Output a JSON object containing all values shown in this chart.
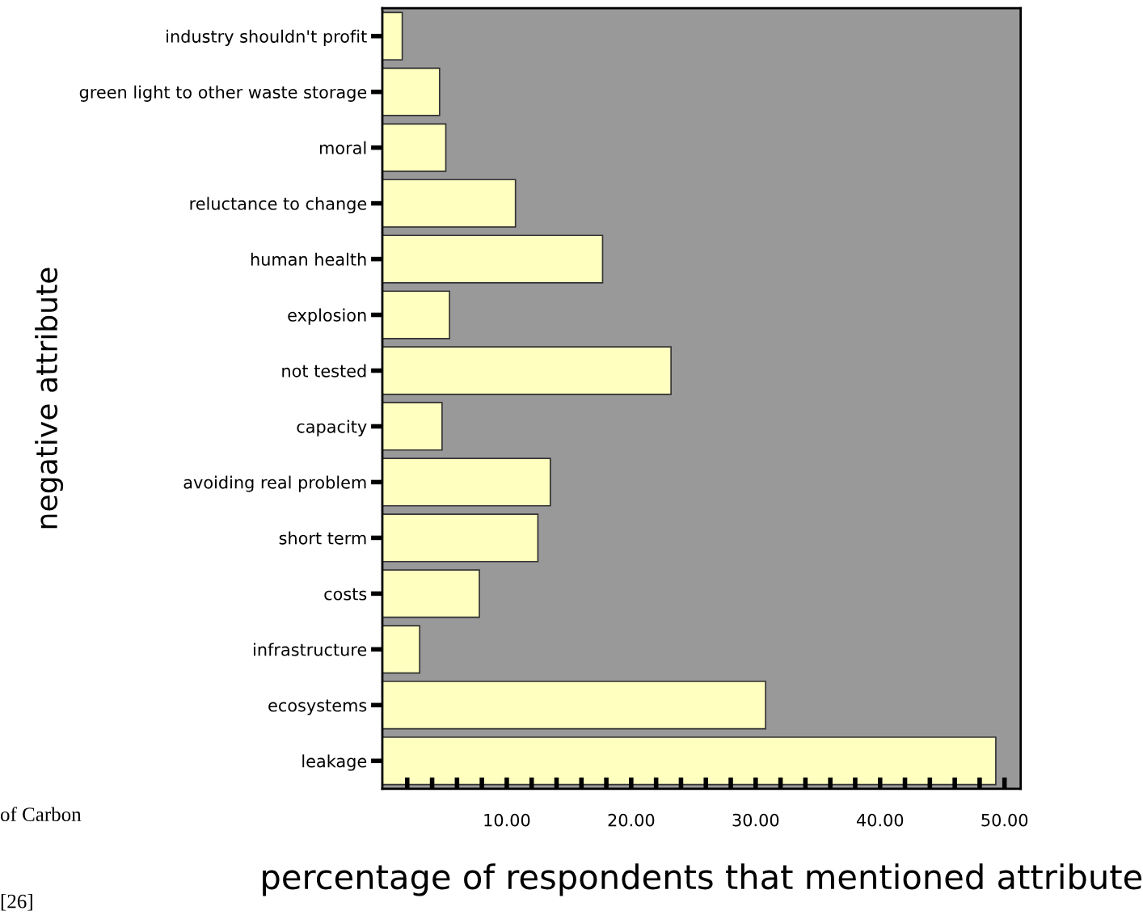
{
  "chart_data": {
    "type": "bar",
    "orientation": "horizontal",
    "xlabel": "percentage of respondents that mentioned attribute",
    "ylabel": "negative attribute",
    "categories": [
      "industry shouldn't profit",
      "green light to other waste storage",
      "moral",
      "reluctance to change",
      "human health",
      "explosion",
      "not tested",
      "capacity",
      "avoiding real problem",
      "short term",
      "costs",
      "infrastructure",
      "ecosystems",
      "leakage"
    ],
    "values": [
      1.6,
      4.6,
      5.1,
      10.7,
      17.7,
      5.4,
      23.2,
      4.8,
      13.5,
      12.5,
      7.8,
      3.0,
      30.8,
      49.3
    ],
    "color": "#ffffc0",
    "xlim": [
      0,
      51.3
    ],
    "xticks": [
      {
        "value": 2,
        "label": null
      },
      {
        "value": 4,
        "label": null
      },
      {
        "value": 6,
        "label": null
      },
      {
        "value": 8,
        "label": null
      },
      {
        "value": 10,
        "label": "10.00"
      },
      {
        "value": 12,
        "label": null
      },
      {
        "value": 14,
        "label": null
      },
      {
        "value": 16,
        "label": null
      },
      {
        "value": 18,
        "label": null
      },
      {
        "value": 20,
        "label": "20.00"
      },
      {
        "value": 22,
        "label": null
      },
      {
        "value": 24,
        "label": null
      },
      {
        "value": 26,
        "label": null
      },
      {
        "value": 28,
        "label": null
      },
      {
        "value": 30,
        "label": "30.00"
      },
      {
        "value": 32,
        "label": null
      },
      {
        "value": 34,
        "label": null
      },
      {
        "value": 36,
        "label": null
      },
      {
        "value": 38,
        "label": null
      },
      {
        "value": 40,
        "label": "40.00"
      },
      {
        "value": 42,
        "label": null
      },
      {
        "value": 44,
        "label": null
      },
      {
        "value": 46,
        "label": null
      },
      {
        "value": 48,
        "label": null
      },
      {
        "value": 50,
        "label": "50.00"
      }
    ],
    "grid": false,
    "annotations": [
      "of Carbon",
      "[26]"
    ]
  }
}
